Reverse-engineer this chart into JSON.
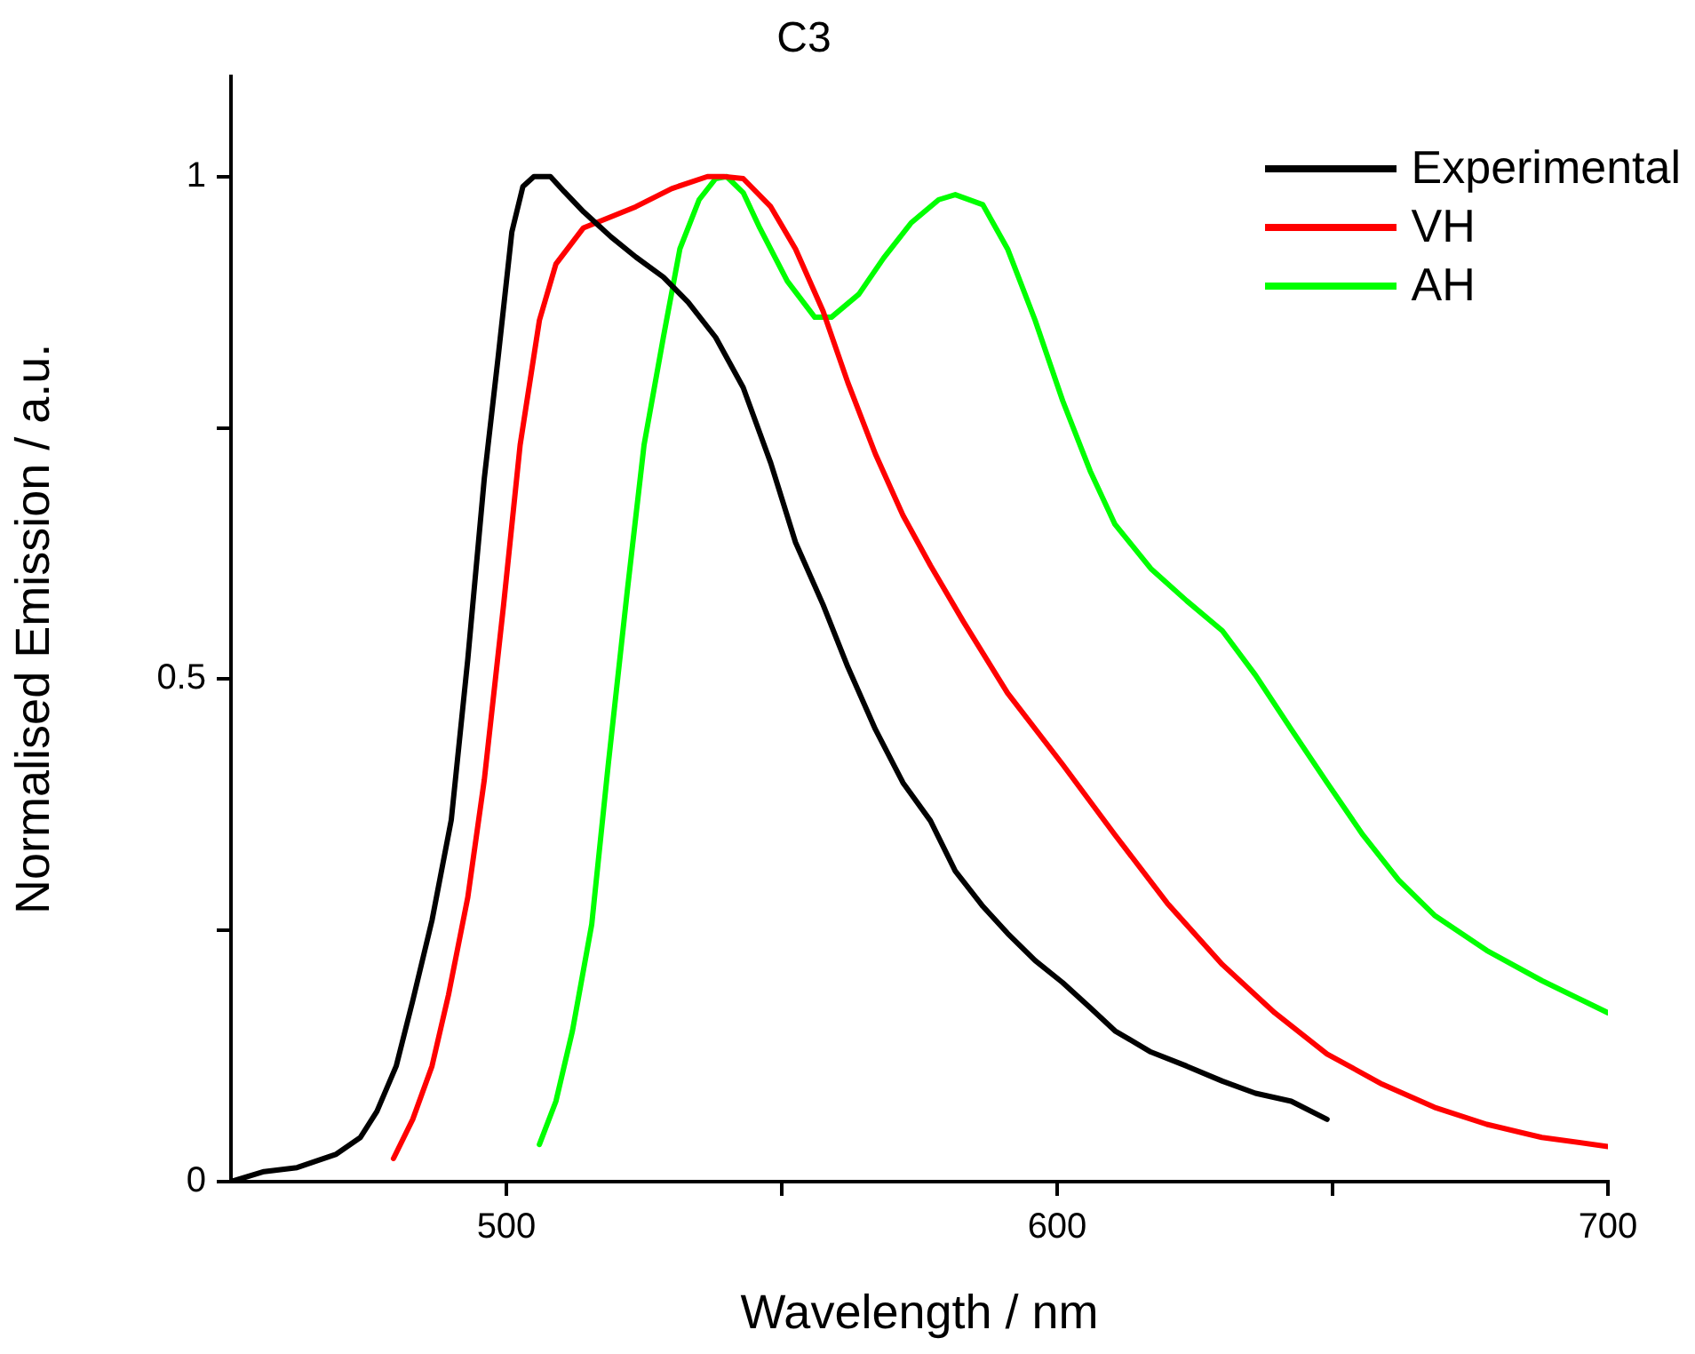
{
  "chart_data": {
    "type": "line",
    "title": "C3",
    "xlabel": "Wavelength / nm",
    "ylabel": "Normalised Emission / a.u.",
    "xlim": [
      450,
      700
    ],
    "xticks": [
      500,
      {
        "value": 550,
        "label": null
      },
      600,
      {
        "value": 650,
        "label": null
      },
      700
    ],
    "ylim": [
      0,
      1.1
    ],
    "yticks": [
      0,
      {
        "value": 0.25,
        "label": null
      },
      0.5,
      {
        "value": 0.75,
        "label": null
      },
      1
    ],
    "legend": "top right",
    "marker": "none",
    "line_style": "solid",
    "series": [
      {
        "name": "Experimental",
        "color": "#000000",
        "x": [
          450,
          456,
          462,
          469,
          473.5,
          476.5,
          480,
          483,
          486.5,
          490,
          493,
          496,
          498.5,
          501,
          503,
          505,
          508,
          510.5,
          514,
          519,
          523.5,
          528.5,
          533,
          538,
          543,
          548,
          552.5,
          557.5,
          562,
          567,
          572,
          577,
          581.5,
          586.5,
          591,
          596,
          601,
          606,
          610.5,
          617,
          623.5,
          630,
          636,
          642.5,
          649
        ],
        "values": [
          0,
          0.01,
          0.014,
          0.027,
          0.044,
          0.07,
          0.115,
          0.18,
          0.26,
          0.36,
          0.52,
          0.7,
          0.82,
          0.945,
          0.99,
          1,
          1,
          0.985,
          0.965,
          0.94,
          0.92,
          0.9,
          0.875,
          0.84,
          0.79,
          0.715,
          0.636,
          0.574,
          0.512,
          0.45,
          0.397,
          0.359,
          0.309,
          0.274,
          0.247,
          0.22,
          0.198,
          0.173,
          0.15,
          0.129,
          0.115,
          0.1,
          0.088,
          0.08,
          0.062
        ]
      },
      {
        "name": "VH",
        "color": "#ff0000",
        "x": [
          479.5,
          483,
          486.5,
          489.5,
          493,
          496,
          499.5,
          502.5,
          506,
          509,
          514,
          519,
          523.5,
          530,
          536.5,
          539.5,
          543,
          548,
          552.5,
          557.5,
          562,
          567,
          572,
          577,
          583,
          591,
          601,
          610.5,
          620,
          630,
          639.5,
          649,
          659,
          668.5,
          678,
          688,
          700
        ],
        "values": [
          0.023,
          0.062,
          0.115,
          0.186,
          0.283,
          0.4,
          0.574,
          0.733,
          0.857,
          0.913,
          0.949,
          0.96,
          0.97,
          0.988,
          1,
          1,
          0.998,
          0.97,
          0.928,
          0.866,
          0.795,
          0.724,
          0.663,
          0.613,
          0.557,
          0.486,
          0.415,
          0.345,
          0.277,
          0.216,
          0.168,
          0.127,
          0.097,
          0.074,
          0.057,
          0.044,
          0.035
        ]
      },
      {
        "name": "AH",
        "color": "#00ff00",
        "x": [
          506,
          509,
          512,
          515.5,
          518.5,
          522,
          525,
          528.5,
          531.5,
          535,
          538,
          540,
          543,
          546,
          551,
          556,
          559,
          564,
          568.5,
          573.5,
          578.5,
          581.5,
          586.5,
          591,
          596,
          601,
          606,
          610.5,
          617,
          623.5,
          630,
          636,
          642.5,
          649,
          655.5,
          662,
          668.5,
          678,
          688,
          700
        ],
        "values": [
          0.037,
          0.08,
          0.15,
          0.256,
          0.415,
          0.59,
          0.733,
          0.84,
          0.928,
          0.977,
          0.998,
          1,
          0.984,
          0.949,
          0.896,
          0.86,
          0.86,
          0.883,
          0.919,
          0.954,
          0.977,
          0.982,
          0.972,
          0.928,
          0.857,
          0.777,
          0.707,
          0.654,
          0.61,
          0.578,
          0.548,
          0.504,
          0.45,
          0.397,
          0.345,
          0.3,
          0.265,
          0.23,
          0.2,
          0.168
        ]
      }
    ]
  }
}
